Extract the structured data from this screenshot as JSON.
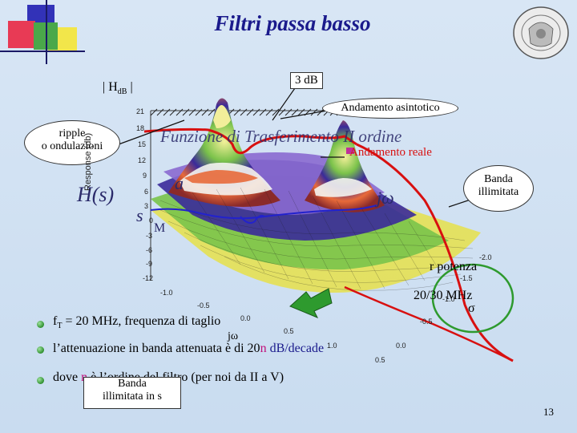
{
  "slide": {
    "title": "Filtri passa basso",
    "page_number": "13",
    "colors": {
      "title": "#1a1a8c",
      "background": "#cfe0f2",
      "curve": "#d81010",
      "arrow_green": "#2e9a2e"
    }
  },
  "labels": {
    "hdb": "| H",
    "hdb_sub": "dB",
    "hdb_end": " |",
    "three_db": "3 dB",
    "asymptotic": "Andamento asintotico",
    "ripple_line1": "ripple",
    "ripple_line2": "o ondulazioni",
    "real": "Andamento reale",
    "band_line1": "Banda",
    "band_line2": "illimitata",
    "transfer_title": "Funzione di Trasferimento II ordine",
    "hs": "H(s)",
    "jw_right": "jω",
    "s_left": "s",
    "a_letter": "a",
    "n_letter": "M",
    "power": "r potenza",
    "bandwidth": "20/30 MHz",
    "sigma": "σ",
    "jw_axis": "jω"
  },
  "plot": {
    "ylabel": "Response (db)",
    "z_ticks": [
      "21",
      "18",
      "15",
      "12",
      "9",
      "6",
      "3",
      "0",
      "-3",
      "-6",
      "-9",
      "-12"
    ],
    "x_ticks": [
      "-1.0",
      "-0.5",
      "0.0",
      "0.5",
      "1.0"
    ],
    "sigma_ticks": [
      "-2.0",
      "-1.5",
      "-1.0",
      "-0.5",
      "0.0",
      "0.5"
    ],
    "lattice_band_colors": [
      "#6b0f1a",
      "#b8201e",
      "#e86a3a",
      "#f4f4f0",
      "#8a6ad0",
      "#3a2a9a",
      "#2f7a2f",
      "#79c44a",
      "#e6e14a"
    ]
  },
  "bullets": [
    {
      "pre": "f",
      "sub": "T",
      "post": " = 20 MHz, frequenza di taglio"
    },
    {
      "pre": "l’attenuazione in banda attenuata è di 20",
      "n": "n",
      "post": " dB/decade"
    },
    {
      "pre": "dove ",
      "n": "n",
      "post": " è l’ordine del filtro (per noi da II a V)"
    }
  ],
  "bottom_box": {
    "line1": "Banda",
    "line2": "illimitata in s"
  }
}
